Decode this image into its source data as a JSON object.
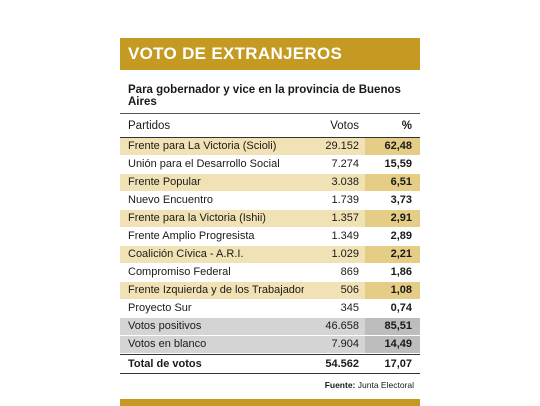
{
  "title": "VOTO DE EXTRANJEROS",
  "subtitle": "Para gobernador y vice en la provincia de Buenos Aires",
  "headers": {
    "party": "Partidos",
    "votes": "Votos",
    "pct": "%"
  },
  "rows": [
    {
      "party": "Frente para La Victoria (Scioli)",
      "votes": "29.152",
      "pct": "62,48",
      "style": "hl"
    },
    {
      "party": "Unión para el Desarrollo Social",
      "votes": "7.274",
      "pct": "15,59",
      "style": ""
    },
    {
      "party": "Frente Popular",
      "votes": "3.038",
      "pct": "6,51",
      "style": "hl"
    },
    {
      "party": "Nuevo Encuentro",
      "votes": "1.739",
      "pct": "3,73",
      "style": ""
    },
    {
      "party": "Frente para la Victoria (Ishii)",
      "votes": "1.357",
      "pct": "2,91",
      "style": "hl"
    },
    {
      "party": "Frente Amplio Progresista",
      "votes": "1.349",
      "pct": "2,89",
      "style": ""
    },
    {
      "party": "Coalición Cívica - A.R.I.",
      "votes": "1.029",
      "pct": "2,21",
      "style": "hl"
    },
    {
      "party": "Compromiso Federal",
      "votes": "869",
      "pct": "1,86",
      "style": ""
    },
    {
      "party": "Frente Izquierda y de los Trabajadores",
      "votes": "506",
      "pct": "1,08",
      "style": "hl"
    },
    {
      "party": "Proyecto Sur",
      "votes": "345",
      "pct": "0,74",
      "style": ""
    },
    {
      "party": "Votos positivos",
      "votes": "46.658",
      "pct": "85,51",
      "style": "gray"
    },
    {
      "party": "Votos en blanco",
      "votes": "7.904",
      "pct": "14,49",
      "style": "gray"
    }
  ],
  "total": {
    "party": "Total de votos",
    "votes": "54.562",
    "pct": "17,07"
  },
  "source": {
    "label": "Fuente:",
    "value": "Junta Electoral"
  }
}
